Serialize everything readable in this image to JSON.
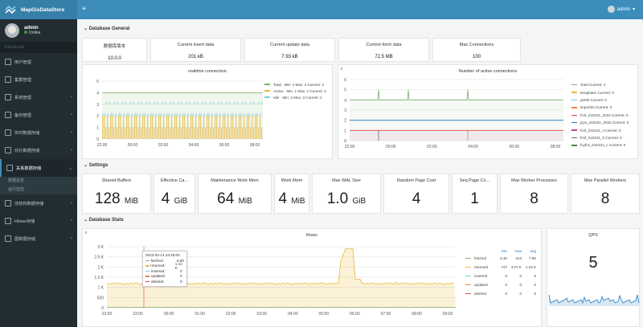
{
  "app": {
    "title": "MapGisDataStore",
    "user": "admin",
    "status": "Online",
    "nav_header": "Dashboard",
    "menu_toggle": "≡",
    "top_user": "admin"
  },
  "menu": [
    {
      "label": "用户管理"
    },
    {
      "label": "集群管理"
    },
    {
      "label": "系统管理"
    },
    {
      "label": "备份管理"
    },
    {
      "label": "实时数据存储"
    },
    {
      "label": "切片数据存储"
    },
    {
      "label": "关系数据存储",
      "active": true
    },
    {
      "label": "非结构数据存储"
    },
    {
      "label": "Hbase存储"
    },
    {
      "label": "图数据存储"
    }
  ],
  "submenu": [
    "数据总览",
    "运行监控"
  ],
  "sections": {
    "general": "Database General",
    "settings": "Settings",
    "stats": "Database Stats"
  },
  "general": [
    {
      "title": "数据库版本",
      "value": "10.0.0"
    },
    {
      "title": "Current insert data",
      "value": "201 kB"
    },
    {
      "title": "Current update data",
      "value": "7.93 kB"
    },
    {
      "title": "Current fetch data",
      "value": "72.5 MB"
    },
    {
      "title": "Max Connections",
      "value": "100"
    }
  ],
  "settings": [
    {
      "title": "Shared Buffers",
      "num": "128",
      "unit": "MiB"
    },
    {
      "title": "Effective Ca...",
      "num": "4",
      "unit": "GiB"
    },
    {
      "title": "Maintenance Work Mem",
      "num": "64",
      "unit": "MiB"
    },
    {
      "title": "Work Mem",
      "num": "4",
      "unit": "MiB"
    },
    {
      "title": "Max WAL Size",
      "num": "1.0",
      "unit": "GiB"
    },
    {
      "title": "Random Page Cost",
      "num": "4",
      "unit": ""
    },
    {
      "title": "Seq Page Co...",
      "num": "1",
      "unit": ""
    },
    {
      "title": "Max Worker Processes",
      "num": "8",
      "unit": ""
    },
    {
      "title": "Max Parallel Workers",
      "num": "8",
      "unit": ""
    }
  ],
  "rt": {
    "title": "realtime connection",
    "xticks": [
      "22:00",
      "00:00",
      "02:00",
      "04:00",
      "06:00",
      "08:00"
    ],
    "yticks": [
      "5",
      "4",
      "3",
      "2",
      "1",
      "0"
    ],
    "legend": [
      {
        "name": "Total",
        "text": "Min: 4  Max: 4  Current: 4",
        "color": "#7eb26d"
      },
      {
        "name": "Active",
        "text": "Min: 1  Max: 2  Current: 2",
        "color": "#eab839"
      },
      {
        "name": "Idle",
        "text": "Min: 2  Max: 3  Current: 2",
        "color": "#6ed0e0"
      }
    ]
  },
  "ac": {
    "title": "Number of active connections",
    "xticks": [
      "22:00",
      "00:00",
      "02:00",
      "04:00",
      "06:00",
      "08:00"
    ],
    "yticks": [
      "6",
      "5",
      "4",
      "3",
      "2",
      "1",
      "0"
    ],
    "legend": [
      {
        "text": "Total   Current: 4",
        "color": "#7eb26d"
      },
      {
        "text": "template1   Current: 0",
        "color": "#eab839"
      },
      {
        "text": "pie05   Current: 0",
        "color": "#6ed0e0"
      },
      {
        "text": "importos   Current: 0",
        "color": "#ef843c"
      },
      {
        "text": "fcsf_210101_2022   Current: 0",
        "color": "#e24d42"
      },
      {
        "text": "jcys_100101_2022   Current: 0",
        "color": "#1f78c1"
      },
      {
        "text": "fcsf_210101_t   Current: 0",
        "color": "#ba43a9"
      },
      {
        "text": "fcsf_210101_h   Current: 0",
        "color": "#705da0"
      },
      {
        "text": "fcyfcs_210101_c   Current: 0",
        "color": "#508642"
      }
    ]
  },
  "rows": {
    "title": "Rows",
    "yticks": [
      "3 K",
      "2.5 K",
      "2 K",
      "1.5 K",
      "1 K",
      "500",
      "0"
    ],
    "xticks": [
      "22:00",
      "23:00",
      "00:00",
      "01:00",
      "02:00",
      "03:00",
      "04:00",
      "05:00",
      "06:00",
      "07:00",
      "08:00",
      "09:00"
    ],
    "head": [
      "min",
      "max",
      "avg"
    ],
    "legend": [
      {
        "name": "fetched",
        "min": "4.40",
        "max": "313",
        "avg": "7.80",
        "color": "#7eb26d"
      },
      {
        "name": "returned",
        "min": "747",
        "max": "4.07 K",
        "avg": "1.16 K",
        "color": "#eab839"
      },
      {
        "name": "inserted",
        "min": "0",
        "max": "0",
        "avg": "0",
        "color": "#6ed0e0"
      },
      {
        "name": "updated",
        "min": "0",
        "max": "0",
        "avg": "0",
        "color": "#ef843c"
      },
      {
        "name": "deleted",
        "min": "0",
        "max": "0",
        "avg": "0",
        "color": "#e24d42"
      }
    ],
    "tooltip": {
      "time": "2023-03-14 23:25:00",
      "rows": [
        {
          "k": "fetched:",
          "v": "8.80",
          "color": "#7eb26d"
        },
        {
          "k": "returned:",
          "v": "1.13 K",
          "color": "#eab839"
        },
        {
          "k": "inserted:",
          "v": "0",
          "color": "#6ed0e0"
        },
        {
          "k": "updated:",
          "v": "0",
          "color": "#ef843c"
        },
        {
          "k": "deleted:",
          "v": "0",
          "color": "#e24d42"
        }
      ]
    }
  },
  "qps": {
    "title": "QPS",
    "value": "5"
  }
}
